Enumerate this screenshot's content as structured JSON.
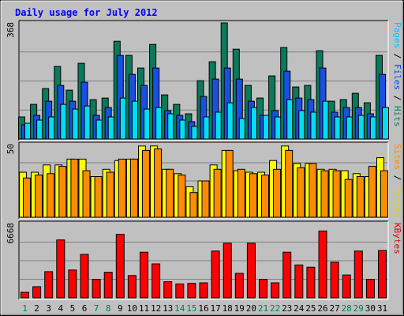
{
  "chart_data": {
    "type": "bar",
    "title": "Daily usage for July 2012",
    "categories": [
      "1",
      "2",
      "3",
      "4",
      "5",
      "6",
      "7",
      "8",
      "9",
      "10",
      "11",
      "12",
      "13",
      "14",
      "15",
      "16",
      "17",
      "18",
      "19",
      "20",
      "21",
      "22",
      "23",
      "24",
      "25",
      "26",
      "27",
      "28",
      "29",
      "30",
      "31"
    ],
    "weekend_days": [
      "1",
      "7",
      "8",
      "14",
      "15",
      "21",
      "22",
      "28",
      "29"
    ],
    "panels": [
      {
        "id": "hits-panel",
        "max_label": "368",
        "ymax": 368,
        "grid": true,
        "axis_label_parts": [
          {
            "text": "Pages",
            "color": "#00c8ff"
          },
          {
            "text": " / ",
            "color": "#000000"
          },
          {
            "text": "Files",
            "color": "#0044ff"
          },
          {
            "text": " / ",
            "color": "#000000"
          },
          {
            "text": "Hits",
            "color": "#007a5a"
          }
        ],
        "series": [
          {
            "name": "Hits",
            "color": "#0a7a5a",
            "values": [
              70,
              110,
              160,
              230,
              155,
              240,
              125,
              130,
              310,
              265,
              225,
              300,
              140,
              110,
              80,
              185,
              245,
              368,
              285,
              170,
              130,
              200,
              290,
              165,
              170,
              280,
              120,
              125,
              145,
              115,
              265
            ]
          },
          {
            "name": "Files",
            "color": "#1a4fe0",
            "values": [
              45,
              75,
              120,
              170,
              120,
              180,
              75,
              100,
              265,
              205,
              170,
              225,
              90,
              75,
              55,
              135,
              190,
              225,
              190,
              120,
              75,
              90,
              215,
              130,
              125,
              225,
              85,
              100,
              100,
              80,
              205
            ]
          },
          {
            "name": "Pages",
            "color": "#00ddf5",
            "values": [
              50,
              60,
              70,
              110,
              95,
              105,
              60,
              70,
              130,
              120,
              95,
              100,
              80,
              60,
              40,
              70,
              85,
              115,
              65,
              100,
              75,
              70,
              125,
              90,
              85,
              120,
              70,
              70,
              75,
              70,
              100
            ]
          }
        ]
      },
      {
        "id": "visits-panel",
        "max_label": "50",
        "ymax": 50,
        "grid": true,
        "axis_label_parts": [
          {
            "text": "Sites",
            "color": "#ff8c00"
          },
          {
            "text": " / ",
            "color": "#000000"
          },
          {
            "text": "Visits",
            "color": "#e0d000"
          }
        ],
        "series": [
          {
            "name": "Visits",
            "color": "#ffff00",
            "values": [
              31,
              31,
              36,
              36,
              40,
              40,
              28,
              33,
              39,
              40,
              49,
              49,
              33,
              30,
              21,
              25,
              36,
              46,
              32,
              31,
              31,
              39,
              49,
              37,
              37,
              33,
              33,
              32,
              30,
              28,
              41
            ]
          },
          {
            "name": "Sites",
            "color": "#ff8c00",
            "values": [
              27,
              29,
              30,
              35,
              40,
              32,
              28,
              31,
              40,
              40,
              46,
              47,
              33,
              29,
              17,
              25,
              33,
              46,
              33,
              30,
              29,
              33,
              46,
              34,
              37,
              32,
              32,
              26,
              28,
              35,
              32
            ]
          }
        ]
      },
      {
        "id": "kbytes-panel",
        "max_label": "6668",
        "ymax": 6668,
        "grid": true,
        "axis_label_parts": [
          {
            "text": "KBytes",
            "color": "#dd0000"
          }
        ],
        "series": [
          {
            "name": "KBytes",
            "color": "#ff0000",
            "values": [
              500,
              1000,
              2350,
              5200,
              2500,
              3900,
              1650,
              2300,
              5700,
              2000,
              4100,
              3050,
              1450,
              1250,
              1300,
              1350,
              4200,
              4900,
              2200,
              4900,
              1650,
              1350,
              4100,
              2950,
              2750,
              6000,
              3200,
              2050,
              4200,
              1650,
              4250
            ]
          }
        ]
      }
    ]
  }
}
